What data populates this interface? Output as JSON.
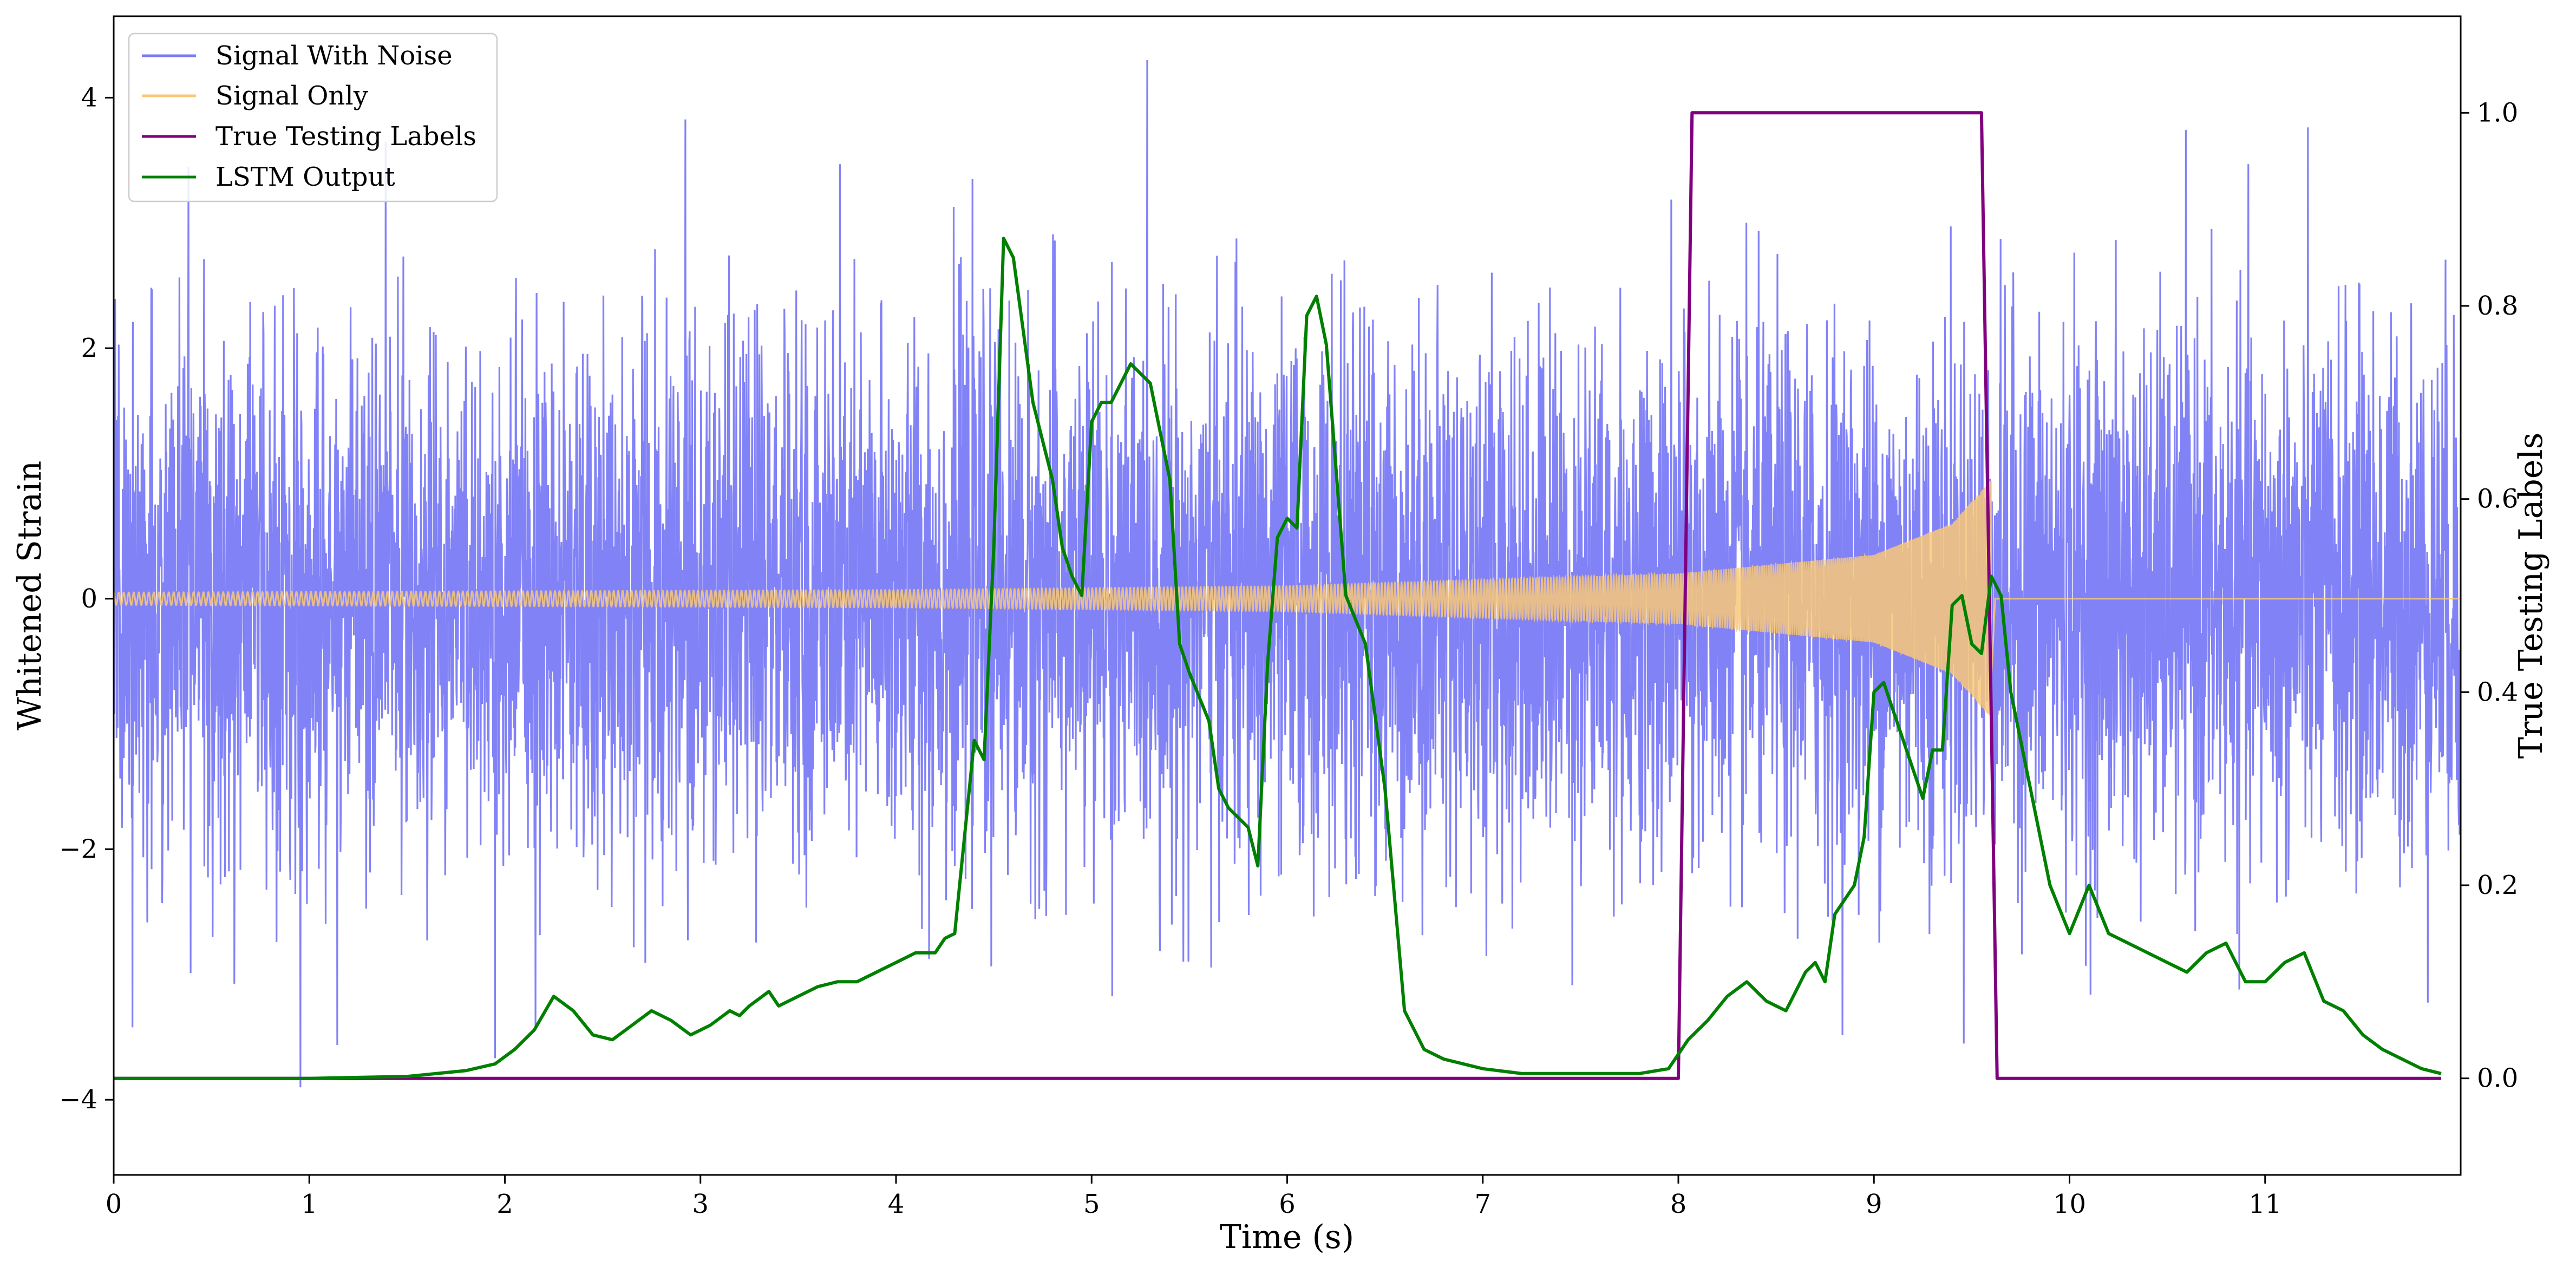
{
  "chart_data": {
    "type": "line",
    "xlabel": "Time (s)",
    "ylabel_left": "Whitened Strain",
    "ylabel_right": "True Testing Labels",
    "xlim": [
      0,
      12
    ],
    "ylim_left": [
      -4.6,
      4.65
    ],
    "ylim_right": [
      -0.1,
      1.1
    ],
    "xticks": [
      0,
      1,
      2,
      3,
      4,
      5,
      6,
      7,
      8,
      9,
      10,
      11
    ],
    "yticks_left": [
      -4,
      -2,
      0,
      2,
      4
    ],
    "yticks_right": [
      0.0,
      0.2,
      0.4,
      0.6,
      0.8,
      1.0
    ],
    "xtick_labels": [
      "0",
      "1",
      "2",
      "3",
      "4",
      "5",
      "6",
      "7",
      "8",
      "9",
      "10",
      "11"
    ],
    "ytick_labels_left": [
      "−4",
      "−2",
      "0",
      "2",
      "4"
    ],
    "ytick_labels_right": [
      "0.0",
      "0.2",
      "0.4",
      "0.6",
      "0.8",
      "1.0"
    ],
    "grid": false,
    "legend_position": "top-left",
    "series": [
      {
        "name": "Signal With Noise",
        "axis": "left",
        "color": "#7b7bf7",
        "style": "dense noise",
        "noise_sigma": 1.0,
        "noise_range": [
          -3.9,
          4.3
        ]
      },
      {
        "name": "Signal Only",
        "axis": "left",
        "color": "#f8c878",
        "style": "chirp",
        "chirp": {
          "start": 0,
          "merger": 9.6,
          "end": 12,
          "amplitude_points": [
            [
              0,
              0.05
            ],
            [
              4,
              0.07
            ],
            [
              6,
              0.1
            ],
            [
              7,
              0.15
            ],
            [
              8,
              0.2
            ],
            [
              9,
              0.35
            ],
            [
              9.4,
              0.6
            ],
            [
              9.6,
              0.95
            ]
          ],
          "cycles_start": 0.0,
          "cycles_merger": 600
        }
      },
      {
        "name": "True Testing Labels",
        "axis": "right",
        "color": "#800080",
        "x": [
          0,
          8.0,
          8.07,
          9.55,
          9.63,
          11.9
        ],
        "y": [
          0,
          0,
          1,
          1,
          0,
          0
        ]
      },
      {
        "name": "LSTM Output",
        "axis": "right",
        "color": "#008000",
        "x": [
          0,
          1.0,
          1.5,
          1.8,
          1.95,
          2.05,
          2.15,
          2.25,
          2.35,
          2.45,
          2.55,
          2.65,
          2.75,
          2.85,
          2.95,
          3.05,
          3.15,
          3.2,
          3.25,
          3.35,
          3.4,
          3.5,
          3.6,
          3.7,
          3.8,
          3.9,
          4.0,
          4.1,
          4.2,
          4.25,
          4.3,
          4.4,
          4.45,
          4.5,
          4.55,
          4.6,
          4.7,
          4.8,
          4.85,
          4.9,
          4.95,
          5.0,
          5.05,
          5.1,
          5.2,
          5.3,
          5.4,
          5.45,
          5.5,
          5.6,
          5.65,
          5.7,
          5.8,
          5.85,
          5.9,
          5.95,
          6.0,
          6.05,
          6.1,
          6.15,
          6.2,
          6.3,
          6.4,
          6.5,
          6.6,
          6.7,
          6.8,
          7.0,
          7.2,
          7.5,
          7.8,
          7.95,
          8.05,
          8.15,
          8.25,
          8.35,
          8.45,
          8.55,
          8.6,
          8.65,
          8.7,
          8.75,
          8.8,
          8.9,
          8.95,
          9.0,
          9.05,
          9.15,
          9.25,
          9.3,
          9.35,
          9.4,
          9.45,
          9.5,
          9.55,
          9.6,
          9.65,
          9.7,
          9.8,
          9.9,
          10.0,
          10.1,
          10.2,
          10.3,
          10.4,
          10.5,
          10.6,
          10.7,
          10.8,
          10.9,
          11.0,
          11.1,
          11.2,
          11.3,
          11.4,
          11.5,
          11.6,
          11.7,
          11.8,
          11.9
        ],
        "y": [
          0.0,
          0.0,
          0.002,
          0.008,
          0.015,
          0.03,
          0.05,
          0.085,
          0.07,
          0.045,
          0.04,
          0.055,
          0.07,
          0.06,
          0.045,
          0.055,
          0.07,
          0.065,
          0.075,
          0.09,
          0.075,
          0.085,
          0.095,
          0.1,
          0.1,
          0.11,
          0.12,
          0.13,
          0.13,
          0.145,
          0.15,
          0.35,
          0.33,
          0.55,
          0.87,
          0.85,
          0.7,
          0.62,
          0.55,
          0.52,
          0.5,
          0.68,
          0.7,
          0.7,
          0.74,
          0.72,
          0.62,
          0.45,
          0.42,
          0.37,
          0.3,
          0.28,
          0.26,
          0.22,
          0.43,
          0.56,
          0.58,
          0.57,
          0.79,
          0.81,
          0.76,
          0.5,
          0.45,
          0.3,
          0.07,
          0.03,
          0.02,
          0.01,
          0.005,
          0.005,
          0.005,
          0.01,
          0.04,
          0.06,
          0.085,
          0.1,
          0.08,
          0.07,
          0.09,
          0.11,
          0.12,
          0.1,
          0.17,
          0.2,
          0.25,
          0.4,
          0.41,
          0.35,
          0.29,
          0.34,
          0.34,
          0.49,
          0.5,
          0.45,
          0.44,
          0.52,
          0.5,
          0.4,
          0.3,
          0.2,
          0.15,
          0.2,
          0.15,
          0.14,
          0.13,
          0.12,
          0.11,
          0.13,
          0.14,
          0.1,
          0.1,
          0.12,
          0.13,
          0.08,
          0.07,
          0.045,
          0.03,
          0.02,
          0.01,
          0.005
        ]
      }
    ]
  }
}
